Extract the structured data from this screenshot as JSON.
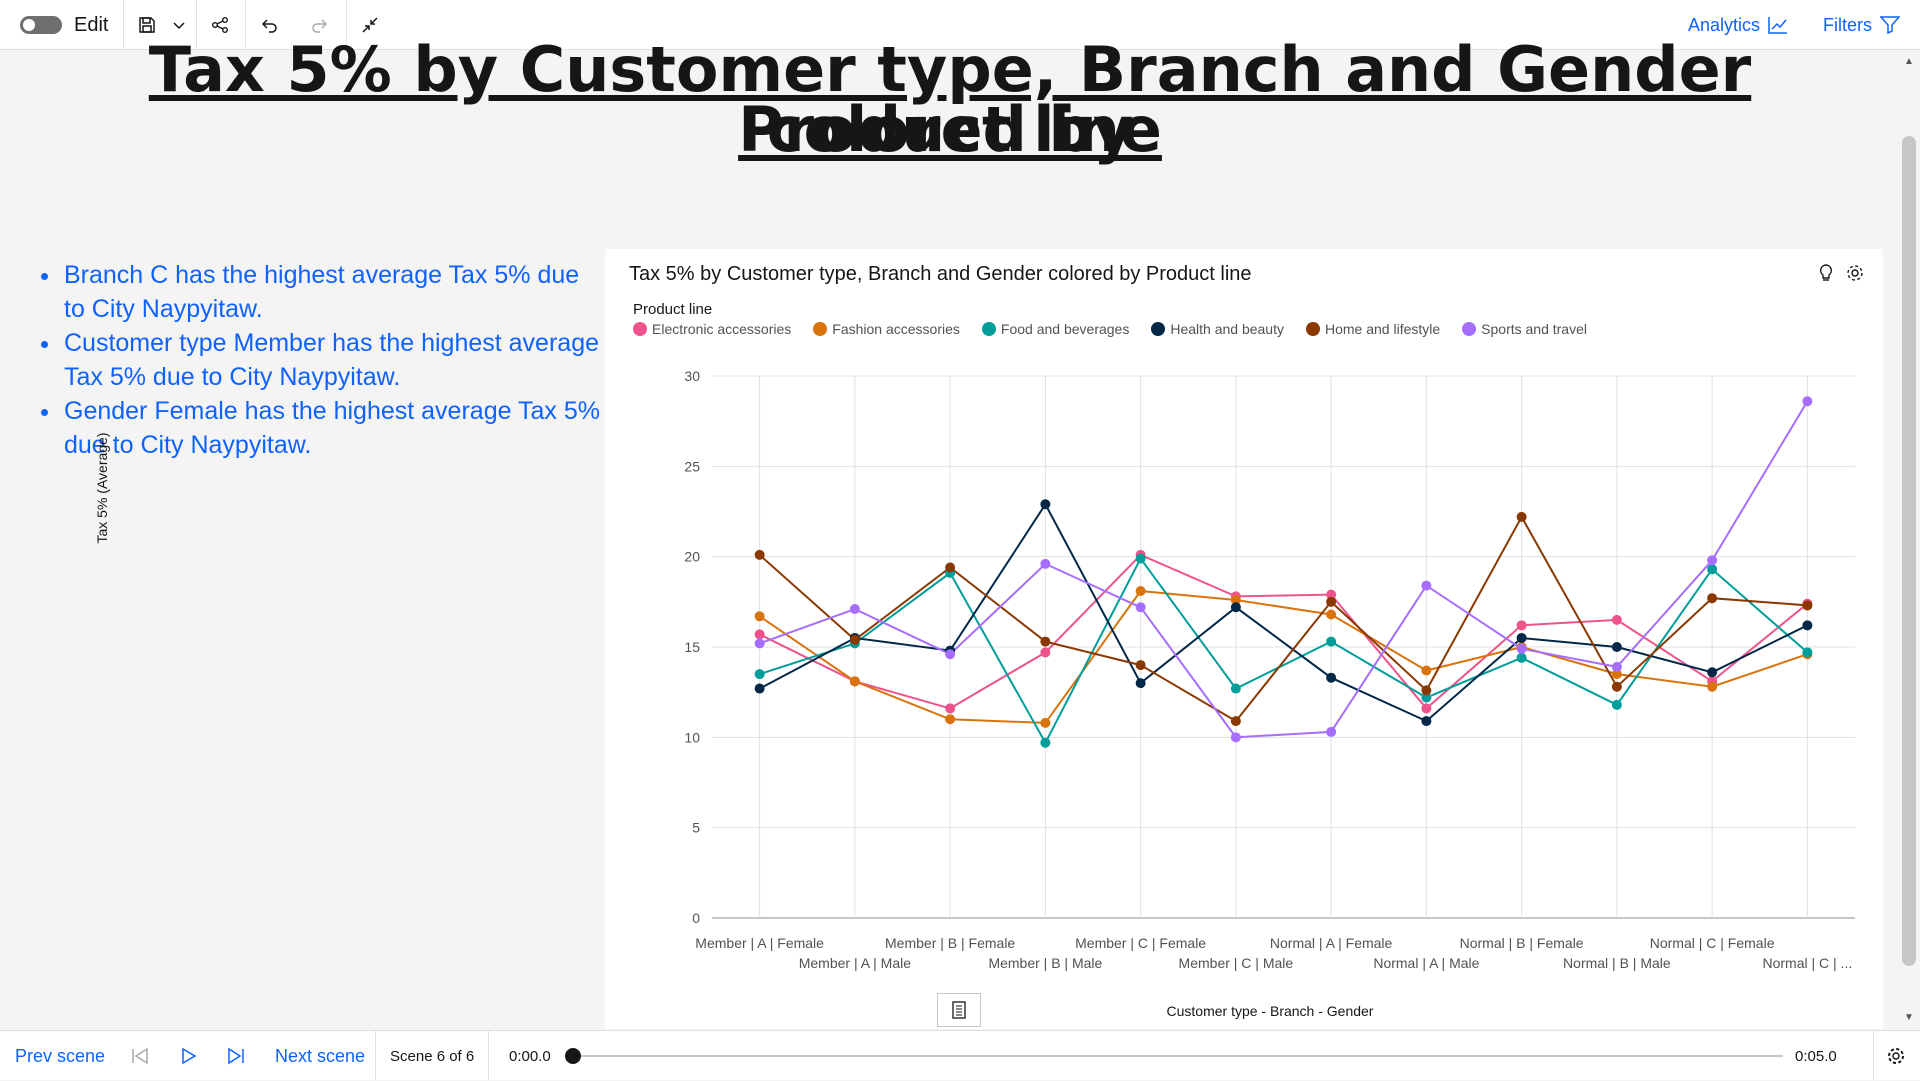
{
  "toolbar": {
    "edit_label": "Edit",
    "analytics_label": "Analytics",
    "filters_label": "Filters"
  },
  "page": {
    "title_line1": "Tax 5% by Customer type, Branch and Gender colored by",
    "title_line2": "Product line"
  },
  "insights": [
    "Branch C has the highest average Tax 5% due to City Naypyitaw.",
    "Customer type Member has the highest average Tax 5% due to City Naypyitaw.",
    "Gender Female has the highest average Tax 5% due to City Naypyitaw."
  ],
  "colors": {
    "accent": "#0f62fe",
    "Electronic accessories": "#ee538b",
    "Fashion accessories": "#d9730d",
    "Food and beverages": "#009d9a",
    "Health and beauty": "#012749",
    "Home and lifestyle": "#8a3800",
    "Sports and travel": "#a56eff"
  },
  "chart_data": {
    "type": "line",
    "title": "Tax 5% by Customer type, Branch and Gender colored by Product line",
    "legend_title": "Product line",
    "xlabel": "Customer type - Branch - Gender",
    "ylabel": "Tax 5% (Average)",
    "ylim": [
      0,
      30
    ],
    "yticks": [
      0,
      5,
      10,
      15,
      20,
      25,
      30
    ],
    "grid": true,
    "legend_position": "top-left",
    "categories": [
      "Member | A | Female",
      "Member | A | Male",
      "Member | B | Female",
      "Member | B | Male",
      "Member | C | Female",
      "Member | C | Male",
      "Normal | A | Female",
      "Normal | A | Male",
      "Normal | B | Female",
      "Normal | B | Male",
      "Normal | C | Female",
      "Normal | C | ..."
    ],
    "series": [
      {
        "name": "Electronic accessories",
        "values": [
          15.7,
          13.1,
          11.6,
          14.7,
          20.1,
          17.8,
          17.9,
          11.6,
          16.2,
          16.5,
          13.1,
          17.4
        ]
      },
      {
        "name": "Fashion accessories",
        "values": [
          16.7,
          13.1,
          11.0,
          10.8,
          18.1,
          17.6,
          16.8,
          13.7,
          15.0,
          13.5,
          12.8,
          14.6
        ]
      },
      {
        "name": "Food and beverages",
        "values": [
          13.5,
          15.2,
          19.1,
          9.7,
          19.9,
          12.7,
          15.3,
          12.2,
          14.4,
          11.8,
          19.3,
          14.7
        ]
      },
      {
        "name": "Health and beauty",
        "values": [
          12.7,
          15.5,
          14.8,
          22.9,
          13.0,
          17.2,
          13.3,
          10.9,
          15.5,
          15.0,
          13.6,
          16.2
        ]
      },
      {
        "name": "Home and lifestyle",
        "values": [
          20.1,
          15.4,
          19.4,
          15.3,
          14.0,
          10.9,
          17.5,
          12.6,
          22.2,
          12.8,
          17.7,
          17.3
        ]
      },
      {
        "name": "Sports and travel",
        "values": [
          15.2,
          17.1,
          14.6,
          19.6,
          17.2,
          10.0,
          10.3,
          18.4,
          14.9,
          13.9,
          19.8,
          28.6
        ]
      }
    ]
  },
  "player": {
    "prev_label": "Prev scene",
    "next_label": "Next scene",
    "scene_label": "Scene 6 of 6",
    "time_start": "0:00.0",
    "time_end": "0:05.0",
    "progress": 0
  }
}
